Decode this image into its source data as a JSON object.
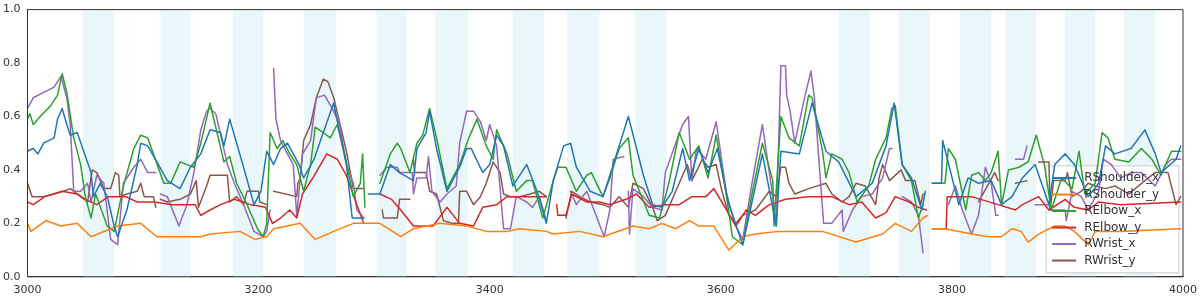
{
  "chart_data": {
    "type": "line",
    "xlim": [
      3000,
      4000
    ],
    "xticks": [
      3000,
      3200,
      3400,
      3600,
      3800,
      4000
    ],
    "ylim": [
      0,
      1
    ],
    "yticks": [
      {
        "value": 0,
        "label": "0.0"
      },
      0.2,
      0.4,
      0.6,
      0.8,
      {
        "value": 1,
        "label": "1.0"
      }
    ],
    "legend": "bottom right",
    "marker": "none",
    "line_style": "solid",
    "bands": [
      {
        "axis": "x",
        "from": 3048,
        "to": 3075,
        "color": "#eaf7fa"
      },
      {
        "axis": "x",
        "from": 3115,
        "to": 3141,
        "color": "#eaf7fa"
      },
      {
        "axis": "x",
        "from": 3178,
        "to": 3204,
        "color": "#eaf7fa"
      },
      {
        "axis": "x",
        "from": 3239,
        "to": 3267,
        "color": "#eaf7fa"
      },
      {
        "axis": "x",
        "from": 3302,
        "to": 3328,
        "color": "#eaf7fa"
      },
      {
        "axis": "x",
        "from": 3353,
        "to": 3381,
        "color": "#eaf7fa"
      },
      {
        "axis": "x",
        "from": 3420,
        "to": 3447,
        "color": "#eaf7fa"
      },
      {
        "axis": "x",
        "from": 3467,
        "to": 3495,
        "color": "#eaf7fa"
      },
      {
        "axis": "x",
        "from": 3526,
        "to": 3553,
        "color": "#eaf7fa"
      },
      {
        "axis": "x",
        "from": 3702,
        "to": 3729,
        "color": "#eaf7fa"
      },
      {
        "axis": "x",
        "from": 3754,
        "to": 3781,
        "color": "#eaf7fa"
      },
      {
        "axis": "x",
        "from": 3807,
        "to": 3834,
        "color": "#eaf7fa"
      },
      {
        "axis": "x",
        "from": 3846,
        "to": 3873,
        "color": "#eaf7fa"
      },
      {
        "axis": "x",
        "from": 3898,
        "to": 3924,
        "color": "#eaf7fa"
      },
      {
        "axis": "x",
        "from": 3949,
        "to": 3976,
        "color": "#eaf7fa"
      }
    ],
    "series": [
      {
        "name": "RShoulder_x",
        "color": "#1f77b4",
        "x": [
          3000,
          3005,
          3009,
          3014,
          3023,
          3026,
          3030,
          3034,
          3037,
          3043,
          3055,
          3057,
          3063,
          3069,
          3075,
          3078,
          3086,
          3095,
          3098,
          3104,
          3112,
          3121,
          3132,
          3141,
          3150,
          3158,
          3167,
          3170,
          3175,
          3187,
          3196,
          3202,
          3207,
          3213,
          3219,
          3225,
          3235,
          3239,
          3248,
          3256,
          3265,
          3270,
          3276,
          3281,
          3291,
          3293,
          3295,
          3305,
          3314,
          3322,
          3334,
          3337,
          3345,
          3348,
          3354,
          3363,
          3374,
          3380,
          3384,
          3394,
          3400,
          3406,
          3412,
          3420,
          3432,
          3441,
          3449,
          3455,
          3464,
          3470,
          3475,
          3487,
          3498,
          3507,
          3520,
          3533,
          3541,
          3549,
          3558,
          3567,
          3573,
          3581,
          3589,
          3597,
          3607,
          3619,
          3627,
          3636,
          3648,
          3652,
          3668,
          3679,
          3691,
          3702,
          3717,
          3731,
          3743,
          3750,
          3757,
          3765,
          3774,
          3777,
          3780,
          3783,
          3791,
          3792,
          3806,
          3814,
          3823,
          3834,
          3843,
          3852,
          3861,
          3872,
          3884,
          3889,
          3898,
          3906,
          3918,
          3927,
          3933,
          3941,
          3955,
          3967,
          3976,
          3981,
          3994,
          3998
        ],
        "values": [
          0.47,
          0.48,
          0.46,
          0.5,
          0.52,
          0.59,
          0.63,
          0.57,
          0.53,
          0.54,
          0.39,
          0.3,
          0.35,
          0.3,
          0.19,
          0.15,
          0.25,
          0.42,
          0.5,
          0.49,
          0.43,
          0.36,
          0.33,
          0.41,
          0.46,
          0.55,
          0.54,
          0.49,
          0.59,
          0.41,
          0.27,
          0.32,
          0.47,
          0.42,
          0.48,
          0.5,
          0.42,
          0.37,
          0.44,
          0.54,
          0.65,
          0.54,
          0.42,
          0.22,
          0.22,
          null,
          0.31,
          0.31,
          0.42,
          0.39,
          0.36,
          0.48,
          0.54,
          0.62,
          0.48,
          0.32,
          0.41,
          0.48,
          0.48,
          0.39,
          0.42,
          0.53,
          0.49,
          0.34,
          0.42,
          0.32,
          0.2,
          0.36,
          0.49,
          0.5,
          0.41,
          0.32,
          0.3,
          0.42,
          0.6,
          0.38,
          0.27,
          0.26,
          0.32,
          0.48,
          0.36,
          0.48,
          0.39,
          0.48,
          0.27,
          0.12,
          0.28,
          0.46,
          0.19,
          0.47,
          0.46,
          0.65,
          0.47,
          0.43,
          0.3,
          0.35,
          0.49,
          0.65,
          0.42,
          0.37,
          0.25,
          0.32,
          null,
          0.35,
          0.35,
          0.51,
          0.27,
          0.37,
          0.35,
          0.36,
          0.27,
          0.3,
          0.37,
          0.42,
          0.27,
          0.42,
          0.46,
          0.42,
          0.3,
          0.35,
          0.49,
          0.46,
          0.48,
          0.55,
          0.46,
          0.39,
          0.44,
          0.49
        ]
      },
      {
        "name": "RShoulder_y",
        "color": "#ff7f0e",
        "x": [
          3000,
          3003,
          3016,
          3029,
          3043,
          3055,
          3072,
          3078,
          3098,
          3112,
          3132,
          3150,
          3158,
          3184,
          3197,
          3207,
          3213,
          3236,
          3249,
          3265,
          3282,
          3305,
          3323,
          3334,
          3357,
          3380,
          3397,
          3415,
          3426,
          3449,
          3455,
          3478,
          3498,
          3524,
          3538,
          3549,
          3561,
          3573,
          3581,
          3594,
          3607,
          3619,
          3630,
          3650,
          3668,
          3688,
          3717,
          3740,
          3751,
          3765,
          3775,
          3779,
          3781,
          3783,
          3794,
          3817,
          3832,
          3843,
          3852,
          3860,
          3866,
          3875,
          3889,
          3898,
          3906,
          3918,
          3924,
          3946,
          3998
        ],
        "values": [
          0.2,
          0.17,
          0.21,
          0.19,
          0.2,
          0.15,
          0.18,
          0.19,
          0.2,
          0.15,
          0.15,
          0.15,
          0.16,
          0.17,
          0.14,
          0.15,
          0.18,
          0.2,
          0.14,
          0.17,
          0.2,
          0.2,
          0.15,
          0.18,
          0.2,
          0.19,
          0.17,
          0.17,
          0.18,
          0.17,
          0.16,
          0.17,
          0.15,
          0.19,
          0.18,
          0.2,
          0.18,
          0.21,
          0.19,
          0.19,
          0.1,
          0.15,
          0.16,
          0.17,
          0.17,
          0.17,
          0.13,
          0.16,
          0.2,
          0.17,
          0.22,
          0.23,
          null,
          0.18,
          0.18,
          0.16,
          0.15,
          0.15,
          0.18,
          0.17,
          0.13,
          0.16,
          0.19,
          0.19,
          0.17,
          0.12,
          0.17,
          0.17,
          0.18
        ]
      },
      {
        "name": "RElbow_x",
        "color": "#2ca02c",
        "x": [
          3000,
          3002,
          3005,
          3011,
          3020,
          3026,
          3030,
          3034,
          3040,
          3046,
          3050,
          3055,
          3059,
          3069,
          3075,
          3083,
          3092,
          3098,
          3104,
          3109,
          3118,
          3124,
          3132,
          3138,
          3144,
          3150,
          3158,
          3164,
          3170,
          3175,
          3181,
          3190,
          3199,
          3204,
          3207,
          3210,
          3216,
          3221,
          3227,
          3233,
          3239,
          3245,
          3249,
          3256,
          3262,
          3268,
          3274,
          3282,
          3288,
          3290,
          3292,
          3298,
          3305,
          3314,
          3320,
          3323,
          3331,
          3337,
          3342,
          3348,
          3354,
          3363,
          3374,
          3382,
          3389,
          3397,
          3403,
          3406,
          3415,
          3423,
          3432,
          3437,
          3446,
          3455,
          3459,
          3466,
          3475,
          3484,
          3488,
          3498,
          3504,
          3512,
          3520,
          3524,
          3538,
          3547,
          3555,
          3564,
          3573,
          3581,
          3589,
          3596,
          3605,
          3610,
          3619,
          3627,
          3636,
          3645,
          3646,
          3652,
          3659,
          3668,
          3676,
          3679,
          3688,
          3691,
          3696,
          3705,
          3711,
          3718,
          3728,
          3734,
          3743,
          3748,
          3751,
          3757,
          3765,
          3771,
          3775,
          3780,
          3783,
          3794,
          3797,
          3803,
          3812,
          3817,
          3823,
          3829,
          3834,
          3840,
          3843,
          3849,
          3858,
          3866,
          3873,
          3880,
          3886,
          3895,
          3904,
          3910,
          3915,
          3924,
          3930,
          3935,
          3941,
          3953,
          3964,
          3973,
          3981,
          3990,
          3998
        ],
        "values": [
          0.59,
          0.61,
          0.57,
          0.6,
          0.64,
          0.68,
          0.76,
          0.69,
          0.52,
          0.42,
          0.3,
          0.22,
          0.31,
          0.19,
          0.17,
          0.34,
          0.48,
          0.53,
          0.52,
          0.46,
          0.35,
          0.35,
          0.43,
          0.42,
          0.41,
          0.5,
          0.65,
          0.54,
          0.43,
          0.45,
          0.35,
          0.27,
          0.18,
          0.15,
          0.2,
          0.54,
          0.48,
          0.51,
          0.46,
          0.42,
          0.32,
          0.42,
          0.56,
          0.54,
          0.52,
          0.57,
          0.47,
          0.3,
          0.35,
          0.46,
          0.26,
          null,
          0.35,
          0.46,
          0.5,
          0.48,
          0.39,
          0.5,
          0.53,
          0.63,
          0.52,
          0.33,
          0.42,
          0.52,
          0.59,
          0.49,
          0.44,
          0.55,
          0.46,
          0.32,
          0.36,
          0.36,
          0.22,
          0.36,
          0.41,
          0.41,
          0.32,
          0.38,
          0.39,
          0.3,
          0.37,
          0.48,
          0.52,
          0.38,
          0.23,
          0.22,
          0.35,
          0.54,
          0.44,
          0.49,
          0.37,
          0.53,
          0.3,
          0.15,
          0.12,
          0.31,
          0.5,
          0.36,
          0.19,
          0.6,
          0.52,
          0.49,
          0.68,
          0.67,
          0.47,
          0.37,
          0.46,
          0.44,
          0.39,
          0.28,
          0.34,
          0.44,
          0.52,
          0.63,
          0.64,
          0.42,
          0.36,
          0.22,
          0.27,
          null,
          0.35,
          0.35,
          0.48,
          0.44,
          0.25,
          0.38,
          0.39,
          0.36,
          0.39,
          0.47,
          0.27,
          0.4,
          0.41,
          0.43,
          0.53,
          0.42,
          0.25,
          0.37,
          0.33,
          0.47,
          0.31,
          0.35,
          0.54,
          0.52,
          0.44,
          0.43,
          0.48,
          0.44,
          0.38,
          0.47,
          0.47
        ]
      },
      {
        "name": "RElbow_y",
        "color": "#d62728",
        "x": [
          3000,
          3005,
          3015,
          3030,
          3043,
          3050,
          3060,
          3070,
          3085,
          3095,
          3110,
          3125,
          3145,
          3150,
          3158,
          3167,
          3179,
          3193,
          3206,
          3212,
          3219,
          3227,
          3233,
          3238,
          3247,
          3259,
          3268,
          3276,
          3285,
          3291,
          3298,
          3305,
          3315,
          3323,
          3334,
          3351,
          3363,
          3374,
          3386,
          3394,
          3406,
          3415,
          3437,
          3449,
          3453,
          3458,
          3459,
          3466,
          3471,
          3484,
          3495,
          3504,
          3518,
          3527,
          3538,
          3552,
          3564,
          3575,
          3587,
          3594,
          3605,
          3613,
          3622,
          3630,
          3642,
          3656,
          3676,
          3696,
          3711,
          3722,
          3734,
          3743,
          3751,
          3763,
          3771,
          3778,
          3780,
          3783,
          3795,
          3796,
          3817,
          3840,
          3855,
          3861,
          3875,
          3884,
          3898,
          3906,
          3918,
          3927,
          3946,
          3998
        ],
        "values": [
          0.28,
          0.27,
          0.3,
          0.32,
          0.31,
          0.29,
          0.27,
          0.3,
          0.3,
          0.28,
          0.28,
          0.27,
          0.27,
          0.23,
          0.25,
          0.27,
          0.29,
          0.27,
          0.26,
          0.2,
          0.22,
          0.25,
          0.22,
          0.31,
          0.37,
          0.46,
          0.44,
          0.38,
          0.27,
          0.2,
          null,
          0.31,
          0.29,
          0.25,
          0.19,
          0.19,
          0.26,
          0.2,
          0.19,
          0.26,
          0.27,
          0.3,
          0.3,
          0.3,
          null,
          0.27,
          0.23,
          0.23,
          0.31,
          0.28,
          0.28,
          0.27,
          0.29,
          0.31,
          0.26,
          0.27,
          0.27,
          0.3,
          0.3,
          0.33,
          0.25,
          0.19,
          0.25,
          0.23,
          0.27,
          0.29,
          0.3,
          0.3,
          0.27,
          0.28,
          0.22,
          0.24,
          0.3,
          0.28,
          0.26,
          0.25,
          null,
          0.18,
          0.18,
          0.3,
          0.3,
          0.27,
          0.25,
          0.27,
          0.3,
          0.25,
          0.29,
          0.26,
          0.25,
          0.28,
          0.27,
          0.28
        ]
      },
      {
        "name": "RWrist_x",
        "color": "#9467bd",
        "x": [
          3000,
          3005,
          3014,
          3023,
          3029,
          3034,
          3037,
          3040,
          3046,
          3052,
          3055,
          3060,
          3066,
          3072,
          3078,
          3083,
          3092,
          3098,
          3104,
          3111,
          3113,
          3115,
          3121,
          3131,
          3138,
          3144,
          3150,
          3155,
          3158,
          3163,
          3173,
          3179,
          3187,
          3196,
          3204,
          3207,
          3210,
          3212,
          3213,
          3215,
          3219,
          3225,
          3230,
          3233,
          3238,
          3245,
          3250,
          3257,
          3265,
          3270,
          3276,
          3282,
          3285,
          3291,
          3298,
          3305,
          3311,
          3320,
          3322,
          3333,
          3334,
          3337,
          3345,
          3347,
          3350,
          3357,
          3363,
          3371,
          3374,
          3380,
          3386,
          3392,
          3397,
          3400,
          3406,
          3409,
          3412,
          3418,
          3423,
          3432,
          3437,
          3443,
          3449,
          3455,
          3470,
          3475,
          3484,
          3492,
          3499,
          3504,
          3507,
          3516,
          3518,
          3520,
          3521,
          3524,
          3533,
          3541,
          3549,
          3552,
          3561,
          3567,
          3572,
          3575,
          3579,
          3587,
          3596,
          3605,
          3613,
          3619,
          3627,
          3636,
          3645,
          3648,
          3652,
          3656,
          3657,
          3660,
          3664,
          3673,
          3678,
          3681,
          3685,
          3689,
          3696,
          3705,
          3706,
          3714,
          3722,
          3731,
          3740,
          3746,
          3748,
          3752,
          3757,
          3765,
          3771,
          3775,
          3780,
          3797,
          3803,
          3809,
          3817,
          3823,
          3829,
          3834,
          3838,
          3840,
          3848,
          3855,
          3862,
          3865,
          3868,
          3872,
          3884,
          3885,
          3898,
          3899,
          3904,
          3912,
          3918,
          3927,
          3931,
          3938,
          3946,
          3955,
          3964,
          3976,
          3985,
          3990,
          3998
        ],
        "values": [
          0.63,
          0.67,
          0.69,
          0.71,
          0.75,
          0.67,
          0.57,
          0.32,
          0.32,
          0.35,
          0.28,
          0.38,
          0.35,
          0.14,
          0.12,
          0.35,
          0.41,
          0.44,
          0.39,
          0.39,
          null,
          0.31,
          0.3,
          0.19,
          0.27,
          0.39,
          0.55,
          0.62,
          0.63,
          0.61,
          0.42,
          0.35,
          0.27,
          0.17,
          0.15,
          0.17,
          0.25,
          null,
          0.78,
          0.59,
          0.51,
          0.46,
          0.42,
          0.23,
          0.46,
          0.51,
          0.67,
          0.68,
          0.62,
          0.57,
          0.42,
          0.35,
          0.25,
          0.22,
          null,
          0.38,
          0.41,
          0.41,
          0.39,
          0.39,
          0.31,
          0.37,
          0.37,
          0.45,
          0.32,
          0.28,
          0.31,
          0.34,
          0.5,
          0.62,
          0.62,
          0.58,
          0.51,
          0.57,
          0.49,
          0.33,
          0.18,
          0.18,
          0.3,
          0.28,
          0.26,
          0.3,
          0.21,
          null,
          0.32,
          0.27,
          0.32,
          0.23,
          0.15,
          0.25,
          0.44,
          0.45,
          null,
          0.32,
          0.16,
          0.33,
          0.3,
          0.26,
          0.25,
          0.39,
          0.5,
          0.57,
          0.6,
          0.36,
          0.48,
          0.44,
          0.58,
          0.31,
          0.19,
          0.14,
          0.35,
          0.57,
          0.3,
          0.19,
          0.79,
          0.79,
          0.68,
          0.62,
          0.5,
          0.68,
          0.77,
          0.67,
          0.43,
          0.2,
          0.2,
          0.25,
          0.17,
          0.25,
          0.3,
          0.31,
          0.37,
          0.48,
          0.48,
          null,
          0.3,
          0.28,
          0.23,
          0.09,
          null,
          0.27,
          0.34,
          0.25,
          0.16,
          0.23,
          0.41,
          0.35,
          0.23,
          0.23,
          null,
          0.44,
          0.44,
          0.49,
          null,
          0.27,
          0.27,
          0.25,
          0.25,
          0.21,
          0.32,
          0.3,
          0.25,
          0.32,
          0.44,
          0.42,
          0.37,
          0.39,
          0.39,
          0.34,
          0.42,
          0.44,
          0.44
        ]
      },
      {
        "name": "RWrist_y",
        "color": "#8c564b",
        "x": [
          3000,
          3004,
          3014,
          3023,
          3031,
          3037,
          3046,
          3052,
          3056,
          3060,
          3066,
          3072,
          3076,
          3079,
          3080,
          3086,
          3095,
          3098,
          3101,
          3109,
          3111,
          3113,
          3115,
          3121,
          3132,
          3141,
          3146,
          3148,
          3155,
          3158,
          3173,
          3175,
          3181,
          3187,
          3190,
          3200,
          3201,
          3207,
          3210,
          3213,
          3233,
          3234,
          3236,
          3239,
          3245,
          3250,
          3256,
          3260,
          3265,
          3270,
          3276,
          3282,
          3291,
          3298,
          3307,
          3308,
          3320,
          3322,
          3331,
          3332,
          3334,
          3335,
          3345,
          3348,
          3354,
          3360,
          3368,
          3373,
          3374,
          3380,
          3386,
          3392,
          3397,
          3403,
          3409,
          3412,
          3418,
          3426,
          3435,
          3443,
          3449,
          3455,
          3466,
          3471,
          3478,
          3487,
          3498,
          3504,
          3512,
          3520,
          3524,
          3533,
          3541,
          3545,
          3552,
          3561,
          3571,
          3575,
          3584,
          3589,
          3596,
          3601,
          3607,
          3613,
          3619,
          3630,
          3642,
          3648,
          3652,
          3656,
          3659,
          3664,
          3676,
          3691,
          3696,
          3705,
          3711,
          3717,
          3725,
          3734,
          3737,
          3740,
          3746,
          3756,
          3760,
          3768,
          3773,
          3775,
          3780,
          3823,
          3832,
          3837,
          3840,
          3848,
          3855,
          3865,
          3870,
          3875,
          3884,
          3885,
          3888,
          3898,
          3900,
          3904,
          3912,
          3918,
          3924,
          3933,
          3941,
          3953,
          3970,
          3976,
          3987,
          3994,
          3998
        ],
        "values": [
          0.35,
          0.3,
          0.3,
          0.31,
          0.32,
          0.33,
          0.3,
          0.28,
          0.4,
          0.39,
          0.33,
          0.33,
          0.39,
          0.38,
          0.3,
          0.31,
          0.32,
          0.35,
          0.3,
          0.3,
          0.26,
          null,
          0.29,
          0.28,
          0.29,
          0.31,
          0.36,
          0.26,
          0.34,
          0.38,
          0.38,
          0.28,
          0.3,
          0.27,
          0.32,
          0.32,
          0.28,
          0.27,
          null,
          0.32,
          0.3,
          0.35,
          0.37,
          0.51,
          0.57,
          0.67,
          0.74,
          0.73,
          0.67,
          0.58,
          0.47,
          0.33,
          0.33,
          null,
          0.25,
          0.22,
          0.22,
          0.29,
          0.29,
          null,
          0.44,
          0.39,
          0.39,
          0.32,
          0.31,
          0.21,
          0.2,
          0.2,
          0.32,
          0.32,
          0.27,
          0.3,
          0.35,
          0.43,
          0.39,
          0.31,
          0.3,
          0.3,
          0.31,
          0.32,
          0.3,
          null,
          0.22,
          0.32,
          0.3,
          0.28,
          0.27,
          0.26,
          0.3,
          0.26,
          0.35,
          0.33,
          0.26,
          0.21,
          0.23,
          0.32,
          0.42,
          0.36,
          0.44,
          0.41,
          0.42,
          0.32,
          0.23,
          0.2,
          0.23,
          0.25,
          0.32,
          0.3,
          0.41,
          0.41,
          0.35,
          0.31,
          0.33,
          0.35,
          0.31,
          0.28,
          0.3,
          0.35,
          0.34,
          0.27,
          0.37,
          0.42,
          0.36,
          0.4,
          0.36,
          0.36,
          0.27,
          0.31,
          null,
          0.28,
          0.35,
          0.39,
          0.36,
          null,
          0.35,
          0.36,
          null,
          0.43,
          0.43,
          0.25,
          0.36,
          0.36,
          0.39,
          0.3,
          0.32,
          0.35,
          0.34,
          0.33,
          0.34,
          0.31,
          0.37,
          0.39,
          0.39,
          0.27,
          0.3
        ]
      }
    ]
  }
}
